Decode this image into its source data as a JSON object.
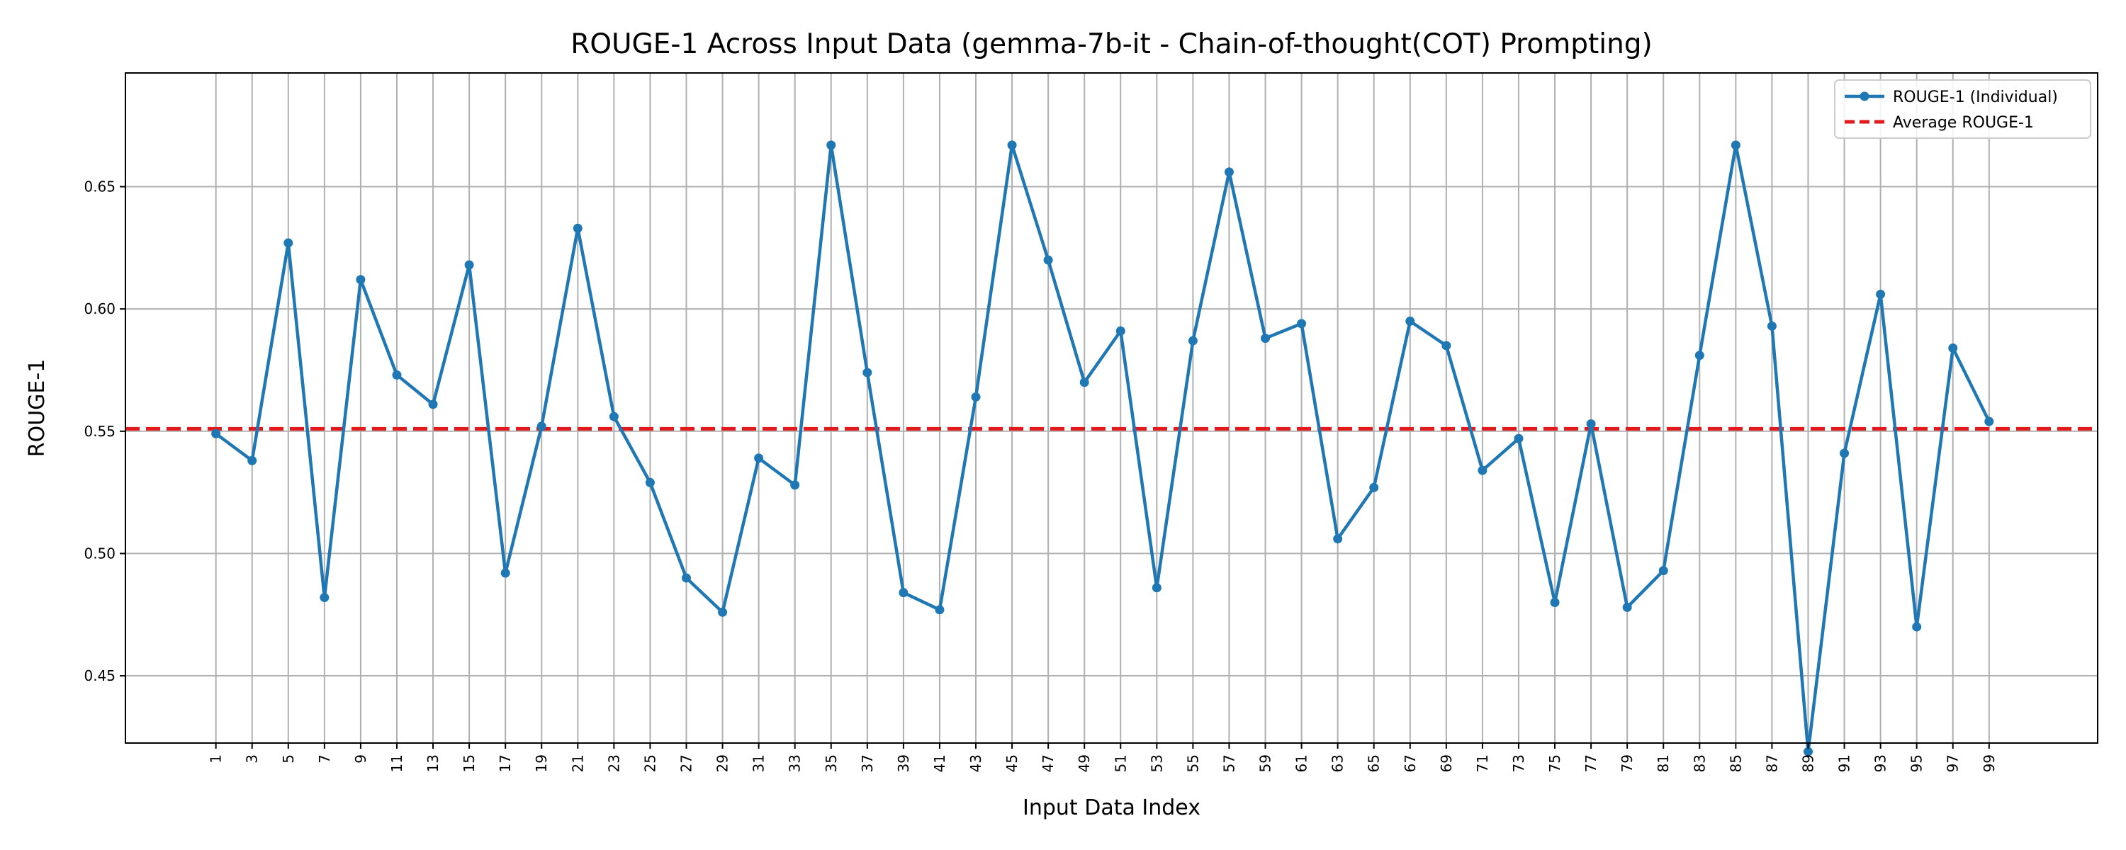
{
  "chart_data": {
    "type": "line",
    "title": "ROUGE-1 Across Input Data (gemma-7b-it - Chain-of-thought(COT) Prompting)",
    "xlabel": "Input Data Index",
    "ylabel": "ROUGE-1",
    "x": [
      1,
      3,
      5,
      7,
      9,
      11,
      13,
      15,
      17,
      19,
      21,
      23,
      25,
      27,
      29,
      31,
      33,
      35,
      37,
      39,
      41,
      43,
      45,
      47,
      49,
      51,
      53,
      55,
      57,
      59,
      61,
      63,
      65,
      67,
      69,
      71,
      73,
      75,
      77,
      79,
      81,
      83,
      85,
      87,
      89,
      91,
      93,
      95,
      97,
      99
    ],
    "xlim": [
      -4,
      105
    ],
    "ylim": [
      0.4225,
      0.6965
    ],
    "yticks": [
      "0.45",
      "0.50",
      "0.55",
      "0.60",
      "0.65"
    ],
    "series": [
      {
        "name": "ROUGE-1 (Individual)",
        "color": "#1f77b4",
        "style": "solid-with-markers",
        "values": [
          0.549,
          0.538,
          0.627,
          0.482,
          0.612,
          0.573,
          0.561,
          0.618,
          0.492,
          0.552,
          0.633,
          0.556,
          0.529,
          0.49,
          0.476,
          0.539,
          0.528,
          0.667,
          0.574,
          0.484,
          0.477,
          0.564,
          0.667,
          0.62,
          0.57,
          0.591,
          0.486,
          0.587,
          0.656,
          0.588,
          0.594,
          0.506,
          0.527,
          0.595,
          0.585,
          0.534,
          0.547,
          0.48,
          0.553,
          0.478,
          0.493,
          0.581,
          0.667,
          0.593,
          0.419,
          0.541,
          0.606,
          0.47,
          0.584,
          0.554
        ]
      },
      {
        "name": "Average ROUGE-1",
        "color": "#e31a1c",
        "style": "dashed",
        "value": 0.551
      }
    ],
    "grid": true,
    "legend_position": "top-right"
  }
}
